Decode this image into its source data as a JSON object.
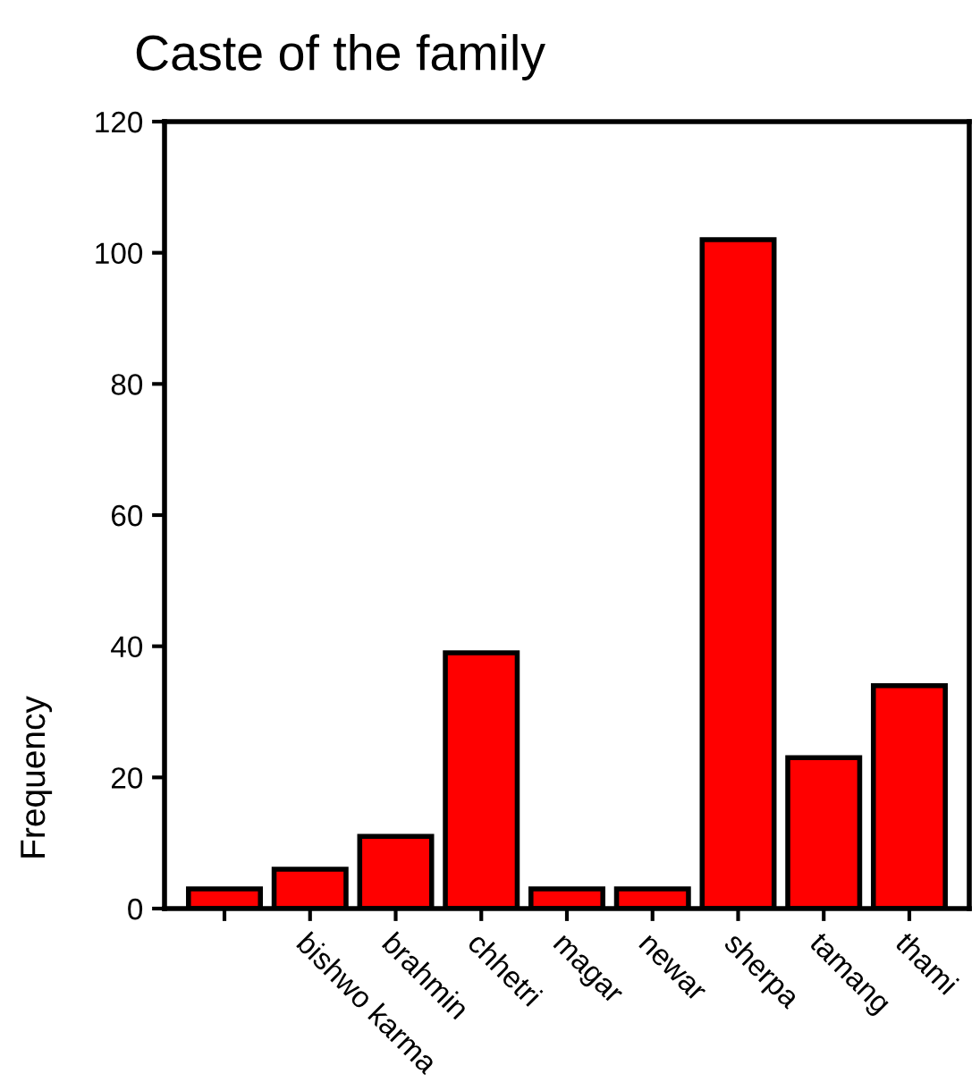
{
  "chart_data": {
    "type": "bar",
    "title": "Caste of the family",
    "ylabel": "Frequency",
    "categories": [
      null,
      "bishwo karma",
      "brahmin",
      "chhetri",
      "magar",
      "newar",
      "sherpa",
      "tamang",
      "thami"
    ],
    "values": [
      3,
      6,
      11,
      39,
      3,
      3,
      102,
      23,
      34
    ],
    "color": "#ff0000",
    "ylim": [
      0,
      120
    ],
    "yticks": [
      0,
      20,
      40,
      60,
      80,
      100,
      120
    ],
    "grid": false,
    "legend": false
  }
}
